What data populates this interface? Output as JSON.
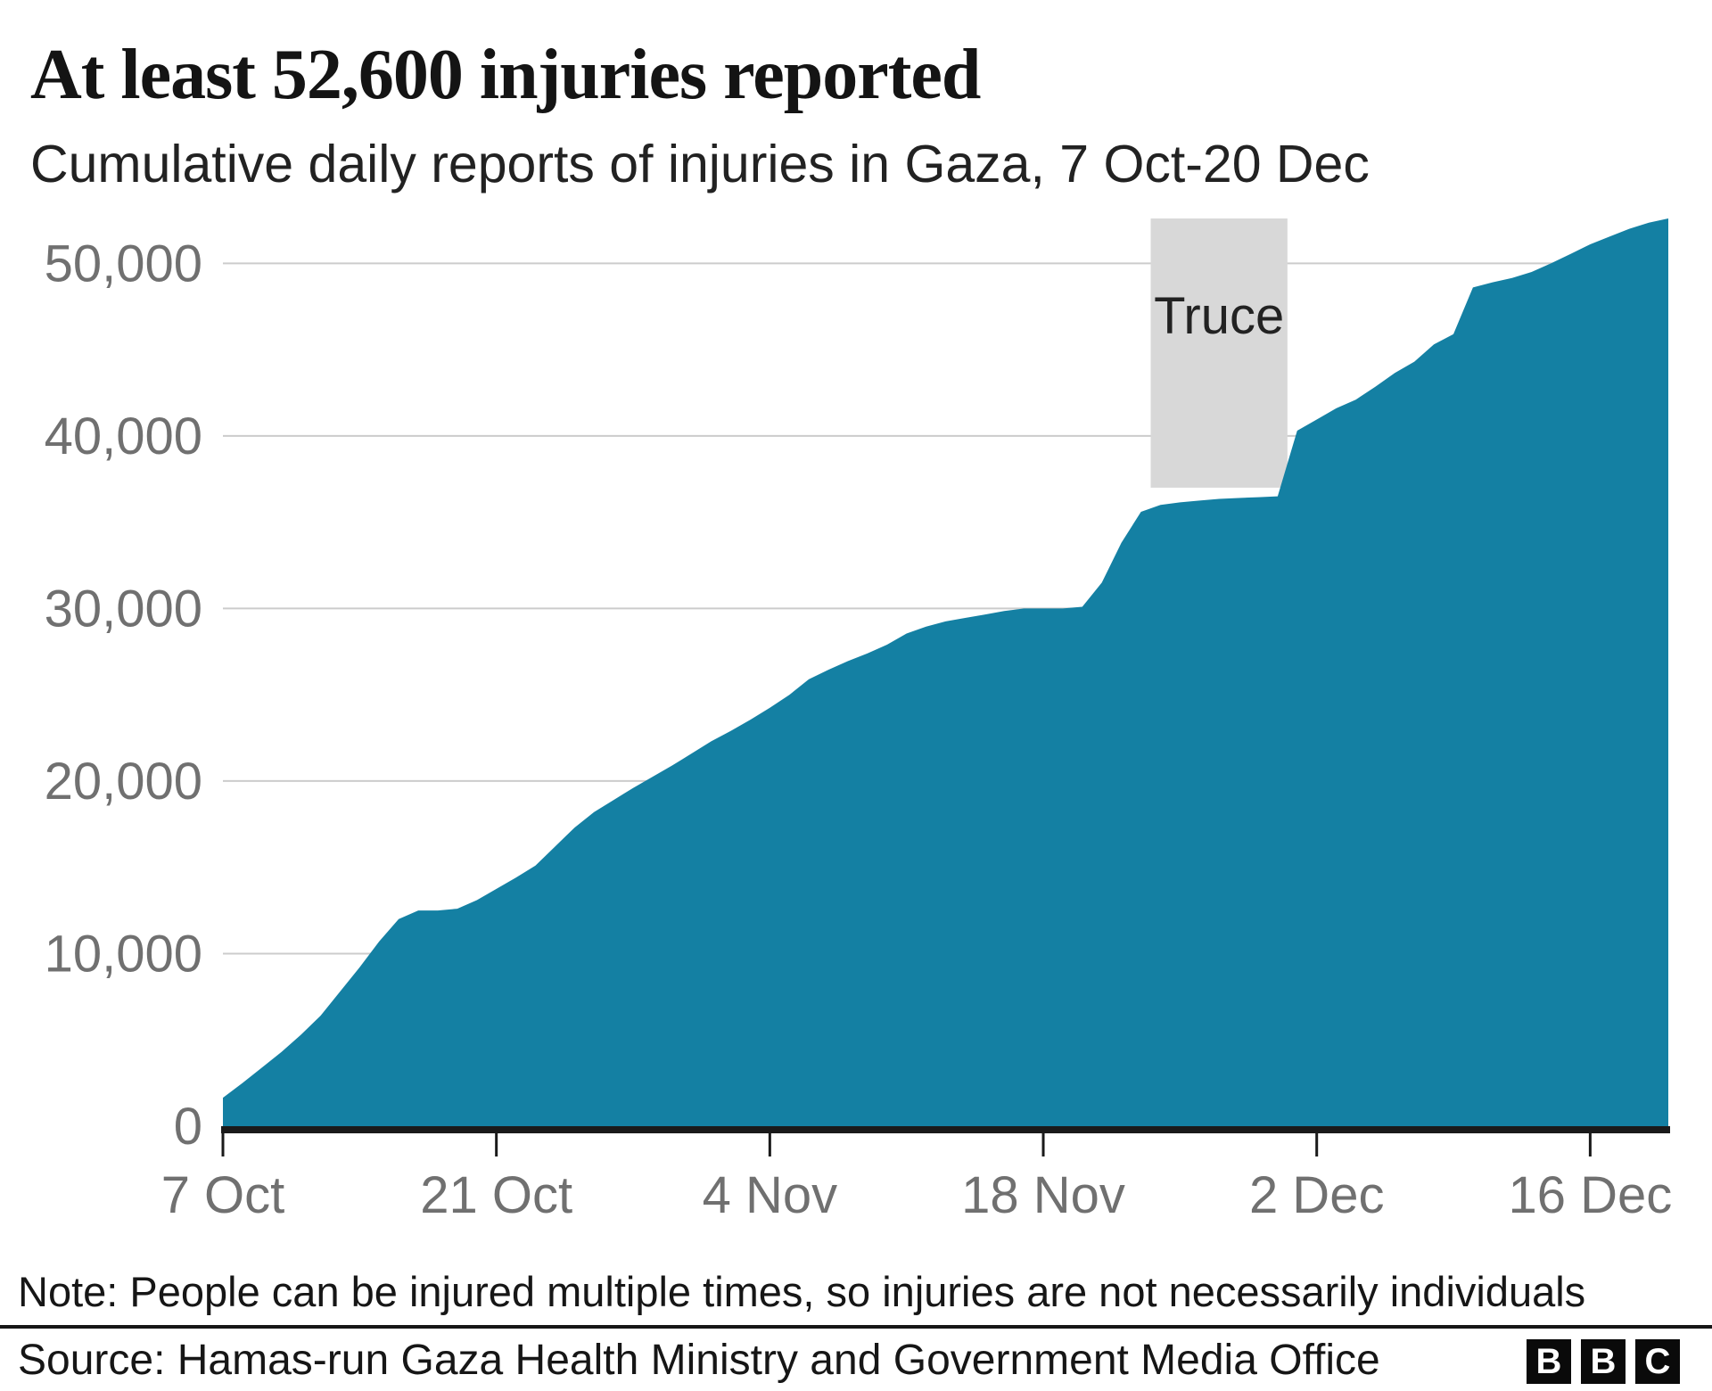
{
  "header": {
    "title": "At least 52,600 injuries reported",
    "subtitle": "Cumulative daily reports of injuries in Gaza, 7 Oct-20 Dec"
  },
  "footer": {
    "note": "Note: People can be injured multiple times, so injuries are not necessarily individuals",
    "source": "Source: Hamas-run Gaza Health Ministry and Government Media Office",
    "logo_letters": [
      "B",
      "B",
      "C"
    ]
  },
  "chart_data": {
    "type": "area",
    "title": "At least 52,600 injuries reported",
    "subtitle": "Cumulative daily reports of injuries in Gaza, 7 Oct-20 Dec",
    "x_start_date": "7 Oct",
    "x_end_date": "20 Dec",
    "x_unit": "days since 7 Oct",
    "values": [
      1650,
      2500,
      3400,
      4300,
      5300,
      6400,
      7800,
      9200,
      10700,
      12000,
      12500,
      12500,
      12600,
      13100,
      13750,
      14400,
      15100,
      16200,
      17300,
      18200,
      18900,
      19600,
      20250,
      20900,
      21600,
      22300,
      22900,
      23550,
      24250,
      25000,
      25900,
      26450,
      26950,
      27400,
      27900,
      28550,
      28950,
      29250,
      29450,
      29650,
      29850,
      30000,
      30000,
      30000,
      30100,
      31500,
      33800,
      35600,
      36000,
      36150,
      36250,
      36350,
      36400,
      36450,
      36500,
      40300,
      40950,
      41600,
      42100,
      42850,
      43650,
      44300,
      45300,
      45900,
      48600,
      48900,
      49150,
      49500,
      50000,
      50550,
      51100,
      51550,
      52000,
      52350,
      52600
    ],
    "final_value": 52600,
    "ylim": [
      0,
      52600
    ],
    "yticks": [
      {
        "value": 0,
        "label": "0"
      },
      {
        "value": 10000,
        "label": "10,000"
      },
      {
        "value": 20000,
        "label": "20,000"
      },
      {
        "value": 30000,
        "label": "30,000"
      },
      {
        "value": 40000,
        "label": "40,000"
      },
      {
        "value": 50000,
        "label": "50,000"
      }
    ],
    "xticks": [
      {
        "day": 0,
        "label": "7 Oct"
      },
      {
        "day": 14,
        "label": "21 Oct"
      },
      {
        "day": 28,
        "label": "4 Nov"
      },
      {
        "day": 42,
        "label": "18 Nov"
      },
      {
        "day": 56,
        "label": "2 Dec"
      },
      {
        "day": 70,
        "label": "16 Dec"
      }
    ],
    "annotation": {
      "label": "Truce",
      "start_day": 47.5,
      "end_day": 54.5,
      "band_bottom_value": 37000
    },
    "grid": "horizontal",
    "legend": "none",
    "colors": {
      "area": "#1480a3",
      "band": "#d8d8d8",
      "gridline": "#cccccc",
      "axis": "#1a1a1a",
      "tick_label": "#707070",
      "annotation_label": "#222222"
    }
  }
}
